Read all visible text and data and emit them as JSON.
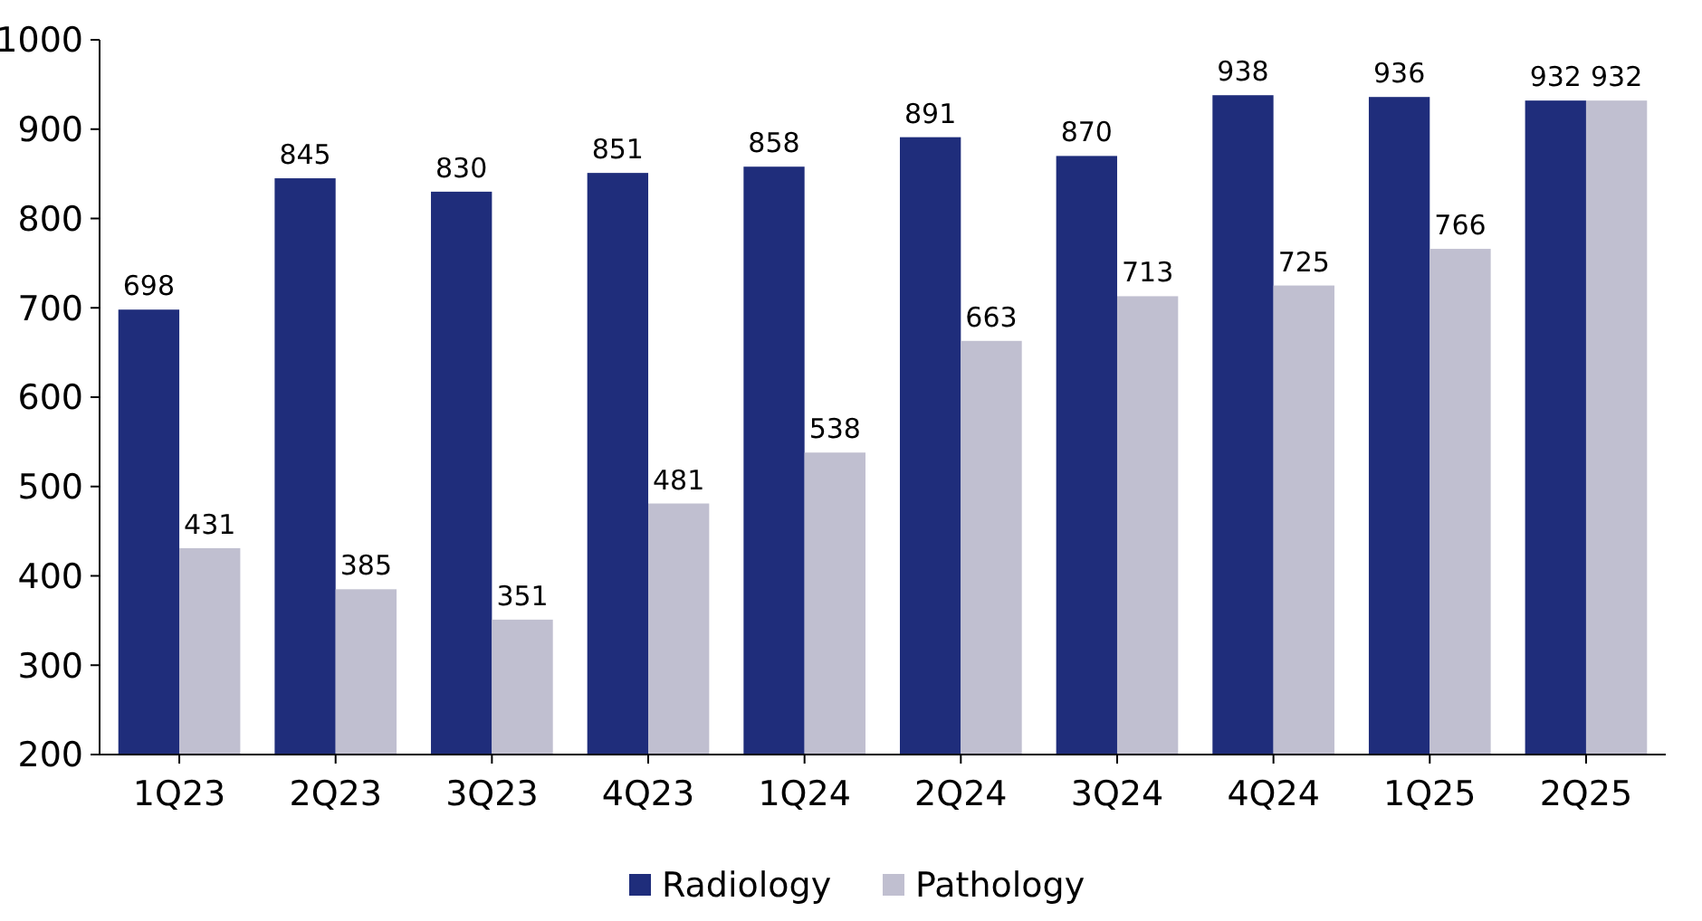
{
  "chart_data": {
    "type": "bar",
    "categories": [
      "1Q23",
      "2Q23",
      "3Q23",
      "4Q23",
      "1Q24",
      "2Q24",
      "3Q24",
      "4Q24",
      "1Q25",
      "2Q25"
    ],
    "series": [
      {
        "name": "Radiology",
        "color": "#1f2d7b",
        "values": [
          698,
          845,
          830,
          851,
          858,
          891,
          870,
          938,
          936,
          932
        ]
      },
      {
        "name": "Pathology",
        "color": "#c0bfd0",
        "values": [
          431,
          385,
          351,
          481,
          538,
          663,
          713,
          725,
          766,
          932
        ]
      }
    ],
    "ylim": [
      200,
      1000
    ],
    "yticks": [
      200,
      300,
      400,
      500,
      600,
      700,
      800,
      900,
      1000
    ],
    "grid": false,
    "legend": "bottom",
    "data_labels": true
  }
}
